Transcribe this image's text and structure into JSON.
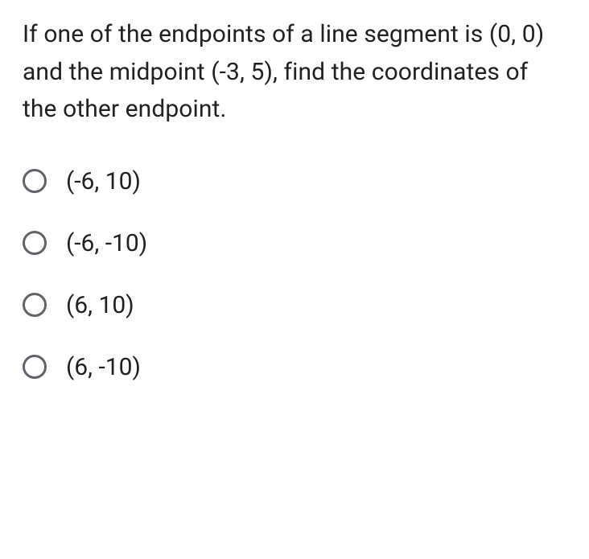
{
  "question": {
    "text": "If one of the endpoints of a line segment is (0, 0) and the midpoint (-3, 5),  find the coordinates of the other endpoint.",
    "font_size": 30,
    "line_height": 1.55,
    "color": "#202124"
  },
  "options": [
    {
      "label": "(-6, 10)"
    },
    {
      "label": "(-6, -10)"
    },
    {
      "label": "(6, 10)"
    },
    {
      "label": "(6, -10)"
    }
  ],
  "option_styling": {
    "font_size": 30,
    "radio_size": 30,
    "radio_border_width": 3,
    "radio_border_color": "#5f6368",
    "row_spacing": 42
  },
  "background_color": "#ffffff"
}
